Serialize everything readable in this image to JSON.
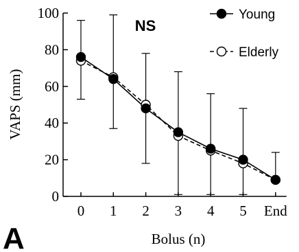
{
  "chart_data": {
    "type": "line",
    "title": "",
    "annotation": "NS",
    "panel_label": "A",
    "xlabel": "Bolus (n)",
    "ylabel": "VAPS (mm)",
    "categories": [
      "0",
      "1",
      "2",
      "3",
      "4",
      "5",
      "End"
    ],
    "y_ticks": [
      "0",
      "20",
      "40",
      "60",
      "80",
      "100"
    ],
    "ylim": [
      0,
      100
    ],
    "grid": false,
    "legend_position": "top-right",
    "series": [
      {
        "name": "Young",
        "marker": "filled-circle",
        "line_style": "solid",
        "values": [
          76,
          64,
          48,
          35,
          26,
          20,
          9
        ],
        "error_upper": [
          96,
          99,
          78,
          68,
          56,
          48,
          24
        ],
        "error_lower": [
          53,
          37,
          18,
          1,
          1,
          1,
          9
        ]
      },
      {
        "name": "Elderly",
        "marker": "open-circle",
        "line_style": "dashed",
        "values": [
          74,
          65,
          50,
          33,
          25,
          18,
          9
        ]
      }
    ],
    "colors": {
      "ink": "#000000",
      "background": "#ffffff"
    }
  }
}
